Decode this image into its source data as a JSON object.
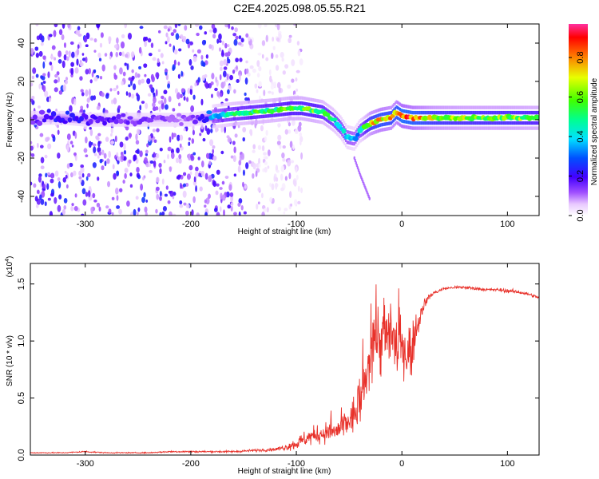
{
  "title": "C2E4.2025.098.05.55.R21",
  "chart_data": [
    {
      "type": "heatmap",
      "xlabel": "Height of straight line (km)",
      "ylabel": "Frequency (Hz)",
      "xlim": [
        -352,
        130
      ],
      "ylim": [
        -50,
        50
      ],
      "x_ticks": [
        -300,
        -200,
        -100,
        0,
        100
      ],
      "y_ticks": [
        -40,
        -20,
        0,
        20,
        40
      ],
      "x_tick_labels": [
        "-300",
        "-200",
        "-100",
        "0",
        "100"
      ],
      "y_tick_labels": [
        "-40",
        "-20",
        "0",
        "20",
        "40"
      ],
      "colorbar": {
        "label": "Normalized spectral amplitude",
        "range": [
          0,
          0.97
        ],
        "ticks": [
          0.0,
          0.2,
          0.4,
          0.6,
          0.8
        ],
        "tick_labels": [
          "0.0",
          "0.2",
          "0.4",
          "0.6",
          "0.8"
        ],
        "colormap": "rainbow (white-violet-blue-cyan-green-yellow-red-magenta)"
      },
      "ridge": {
        "x": [
          -350,
          -320,
          -300,
          -250,
          -200,
          -175,
          -160,
          -140,
          -120,
          -105,
          -95,
          -85,
          -75,
          -65,
          -58,
          -52,
          -45,
          -40,
          -30,
          -20,
          -10,
          -5,
          0,
          10,
          30,
          60,
          100,
          130
        ],
        "y": [
          1,
          1,
          0,
          0,
          0,
          2,
          3,
          4,
          5,
          6,
          6,
          5,
          4,
          0,
          -4,
          -9,
          -10,
          -6,
          -2,
          0,
          1,
          4,
          2,
          1,
          1,
          1,
          1,
          1
        ],
        "amplitude": [
          0.15,
          0.25,
          0.2,
          0.15,
          0.12,
          0.4,
          0.5,
          0.55,
          0.55,
          0.6,
          0.6,
          0.6,
          0.55,
          0.5,
          0.45,
          0.4,
          0.35,
          0.4,
          0.7,
          0.8,
          0.75,
          0.8,
          0.9,
          0.85,
          0.7,
          0.65,
          0.65,
          0.6
        ]
      },
      "scattered_noise_region_x": [
        -352,
        -120
      ],
      "branch": {
        "x": [
          -45,
          -40,
          -35,
          -30
        ],
        "y": [
          -20,
          -28,
          -35,
          -42
        ]
      }
    },
    {
      "type": "line",
      "xlabel": "Height of straight line (km)",
      "ylabel": "SNR (10 * v/v)",
      "y_scale_label": "(x10",
      "y_scale_exponent": "4",
      "xlim": [
        -352,
        130
      ],
      "ylim": [
        0,
        1.68
      ],
      "x_ticks": [
        -300,
        -200,
        -100,
        0,
        100
      ],
      "y_ticks": [
        0.0,
        0.5,
        1.0,
        1.5
      ],
      "x_tick_labels": [
        "-300",
        "-200",
        "-100",
        "0",
        "100"
      ],
      "y_tick_labels": [
        "0.0",
        "0.5",
        "1.0",
        "1.5"
      ],
      "series": [
        {
          "color": "#e8312a",
          "x": [
            -352,
            -340,
            -320,
            -300,
            -280,
            -260,
            -240,
            -220,
            -200,
            -180,
            -160,
            -140,
            -120,
            -110,
            -100,
            -90,
            -80,
            -70,
            -60,
            -50,
            -45,
            -40,
            -35,
            -30,
            -25,
            -20,
            -15,
            -10,
            -5,
            0,
            5,
            10,
            15,
            20,
            25,
            30,
            40,
            50,
            60,
            70,
            80,
            90,
            100,
            110,
            120,
            130
          ],
          "y": [
            0.02,
            0.02,
            0.02,
            0.03,
            0.02,
            0.02,
            0.02,
            0.03,
            0.03,
            0.03,
            0.03,
            0.04,
            0.05,
            0.07,
            0.1,
            0.15,
            0.18,
            0.2,
            0.22,
            0.3,
            0.35,
            0.45,
            0.6,
            0.85,
            1.1,
            1.0,
            1.0,
            1.05,
            0.95,
            0.95,
            0.9,
            0.95,
            1.15,
            1.3,
            1.38,
            1.42,
            1.46,
            1.47,
            1.47,
            1.46,
            1.45,
            1.45,
            1.44,
            1.43,
            1.41,
            1.38
          ],
          "noise_amplitude": [
            0.005,
            0.005,
            0.005,
            0.008,
            0.005,
            0.005,
            0.005,
            0.008,
            0.008,
            0.008,
            0.01,
            0.012,
            0.015,
            0.03,
            0.06,
            0.08,
            0.09,
            0.1,
            0.12,
            0.15,
            0.2,
            0.22,
            0.25,
            0.3,
            0.35,
            0.35,
            0.3,
            0.3,
            0.3,
            0.28,
            0.25,
            0.25,
            0.12,
            0.05,
            0.03,
            0.02,
            0.015,
            0.015,
            0.015,
            0.015,
            0.015,
            0.015,
            0.02,
            0.015,
            0.015,
            0.015
          ]
        }
      ]
    }
  ]
}
